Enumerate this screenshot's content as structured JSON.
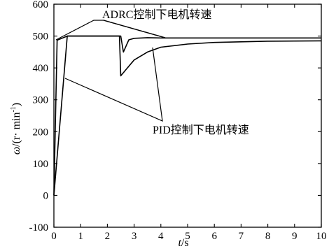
{
  "chart_data": {
    "type": "line",
    "xlabel_var": "t",
    "xlabel_unit": "/s",
    "ylabel_var": "ω",
    "ylabel_unit_prefix": "/(r· min",
    "ylabel_sup": "-1",
    "ylabel_unit_suffix": ")",
    "xlim": [
      0,
      10
    ],
    "ylim": [
      -100,
      600
    ],
    "xticks": [
      0,
      1,
      2,
      3,
      4,
      5,
      6,
      7,
      8,
      9,
      10
    ],
    "yticks": [
      -100,
      0,
      100,
      200,
      300,
      400,
      500,
      600
    ],
    "grid": false,
    "legend": "none",
    "annotations": [
      {
        "text": "ADRC控制下电机转速"
      },
      {
        "text": "PID控制下电机转速"
      }
    ],
    "series": [
      {
        "x": [
          0,
          0.12,
          0.5,
          2.5,
          2.6,
          2.8,
          3.0,
          3.5,
          4.0,
          4.5,
          6.0,
          10.0
        ],
        "y": [
          0,
          487,
          500,
          500,
          450,
          488,
          493,
          495,
          494,
          494,
          494,
          494
        ]
      },
      {
        "x": [
          0,
          0.5,
          2.45,
          2.5,
          2.7,
          3.0,
          3.5,
          4.0,
          5.0,
          6.0,
          8.0,
          10.0
        ],
        "y": [
          0,
          500,
          500,
          375,
          395,
          425,
          450,
          465,
          475,
          480,
          484,
          485
        ]
      }
    ]
  }
}
